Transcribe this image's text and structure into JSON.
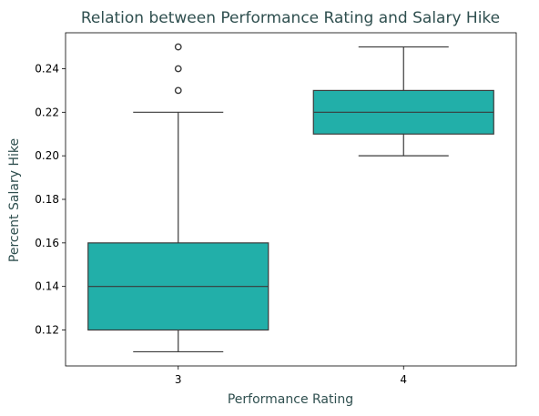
{
  "chart_data": {
    "type": "box",
    "title": "Relation between Performance Rating and Salary Hike",
    "xlabel": "Performance Rating",
    "ylabel": "Percent Salary Hike",
    "ylim": [
      0.1035,
      0.2565
    ],
    "yticks": [
      0.12,
      0.14,
      0.16,
      0.18,
      0.2,
      0.22,
      0.24
    ],
    "ytick_labels": [
      "0.12",
      "0.14",
      "0.16",
      "0.18",
      "0.20",
      "0.22",
      "0.24"
    ],
    "categories": [
      "3",
      "4"
    ],
    "boxes": [
      {
        "category": "3",
        "whisker_low": 0.11,
        "q1": 0.12,
        "median": 0.14,
        "q3": 0.16,
        "whisker_high": 0.22,
        "outliers": [
          0.23,
          0.24,
          0.25
        ]
      },
      {
        "category": "4",
        "whisker_low": 0.2,
        "q1": 0.21,
        "median": 0.22,
        "q3": 0.23,
        "whisker_high": 0.25,
        "outliers": []
      }
    ],
    "grid": false,
    "colors": {
      "box_fill": "#22afa9",
      "line": "#3a3a3a",
      "text_accent": "#2f4f4f"
    }
  }
}
